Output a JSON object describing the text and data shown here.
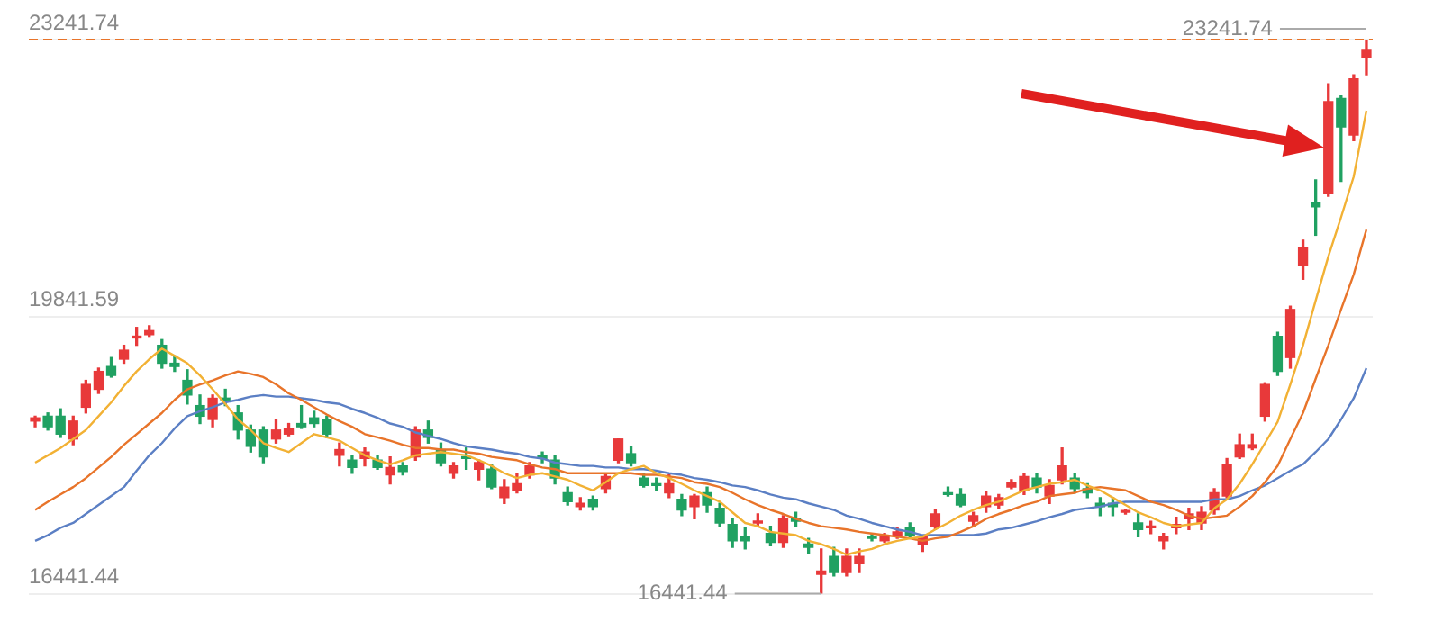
{
  "chart_data": {
    "type": "candlestick",
    "categories": [
      null,
      null,
      null,
      null,
      null,
      null,
      null,
      null,
      null,
      null,
      null,
      null,
      null,
      null,
      null,
      null,
      null,
      null,
      null,
      null,
      null,
      null,
      null,
      null,
      null,
      null,
      null,
      null,
      null,
      null,
      null,
      null,
      null,
      null,
      null,
      null,
      null,
      null,
      null,
      null,
      null,
      null,
      null,
      null,
      null,
      null,
      null,
      null,
      null,
      null,
      null,
      null,
      null,
      null,
      null,
      null,
      null,
      null,
      null,
      null,
      null,
      null,
      null,
      null,
      null,
      null,
      null,
      null,
      null,
      null,
      null,
      null,
      null,
      null,
      null,
      null,
      null,
      null,
      null,
      null,
      null,
      null,
      null,
      null,
      null,
      null,
      null,
      null,
      null,
      null,
      null,
      null,
      null,
      null,
      null,
      null,
      null,
      null,
      null,
      null,
      null,
      null,
      null,
      null,
      null,
      null
    ],
    "ohlc": [
      [
        18560,
        18620,
        18490,
        18600
      ],
      [
        18620,
        18660,
        18450,
        18490
      ],
      [
        18620,
        18710,
        18360,
        18400
      ],
      [
        18340,
        18620,
        18270,
        18560
      ],
      [
        18730,
        19060,
        18660,
        19010
      ],
      [
        18950,
        19210,
        18900,
        19170
      ],
      [
        19230,
        19340,
        19100,
        19120
      ],
      [
        19320,
        19490,
        19270,
        19430
      ],
      [
        19580,
        19710,
        19490,
        19600
      ],
      [
        19620,
        19730,
        19600,
        19670
      ],
      [
        19490,
        19560,
        19210,
        19270
      ],
      [
        19270,
        19360,
        19170,
        19230
      ],
      [
        19060,
        19190,
        18770,
        18880
      ],
      [
        18750,
        18880,
        18530,
        18620
      ],
      [
        18580,
        18880,
        18490,
        18840
      ],
      [
        18840,
        18950,
        18750,
        18820
      ],
      [
        18660,
        18750,
        18340,
        18450
      ],
      [
        18450,
        18510,
        18180,
        18250
      ],
      [
        18450,
        18490,
        18050,
        18120
      ],
      [
        18340,
        18580,
        18290,
        18450
      ],
      [
        18400,
        18530,
        18380,
        18470
      ],
      [
        18530,
        18750,
        18470,
        18490
      ],
      [
        18600,
        18680,
        18490,
        18530
      ],
      [
        18580,
        18620,
        18360,
        18400
      ],
      [
        18140,
        18290,
        18010,
        18210
      ],
      [
        18080,
        18140,
        17920,
        17990
      ],
      [
        18100,
        18230,
        18010,
        18180
      ],
      [
        18080,
        18140,
        17970,
        17990
      ],
      [
        17900,
        18120,
        17790,
        17990
      ],
      [
        18010,
        18050,
        17900,
        17940
      ],
      [
        18120,
        18490,
        18080,
        18450
      ],
      [
        18450,
        18560,
        18290,
        18360
      ],
      [
        18210,
        18290,
        18010,
        18050
      ],
      [
        17920,
        18050,
        17860,
        18010
      ],
      [
        18120,
        18230,
        17970,
        18100
      ],
      [
        17970,
        18080,
        17840,
        18050
      ],
      [
        17970,
        18030,
        17730,
        17750
      ],
      [
        17620,
        17840,
        17550,
        17750
      ],
      [
        17710,
        17920,
        17680,
        17790
      ],
      [
        17900,
        18050,
        17860,
        18010
      ],
      [
        18140,
        18180,
        18050,
        18100
      ],
      [
        18080,
        18140,
        17790,
        17860
      ],
      [
        17680,
        17750,
        17530,
        17570
      ],
      [
        17510,
        17620,
        17470,
        17550
      ],
      [
        17600,
        17640,
        17470,
        17510
      ],
      [
        17730,
        17920,
        17680,
        17880
      ],
      [
        18080,
        18340,
        18050,
        18340
      ],
      [
        18160,
        18250,
        18010,
        18050
      ],
      [
        17860,
        17920,
        17750,
        17770
      ],
      [
        17790,
        17860,
        17710,
        17770
      ],
      [
        17680,
        17900,
        17620,
        17790
      ],
      [
        17600,
        17660,
        17400,
        17470
      ],
      [
        17510,
        17660,
        17360,
        17640
      ],
      [
        17680,
        17750,
        17440,
        17530
      ],
      [
        17490,
        17550,
        17270,
        17310
      ],
      [
        17290,
        17360,
        17010,
        17090
      ],
      [
        17140,
        17250,
        16990,
        17090
      ],
      [
        17310,
        17420,
        17270,
        17330
      ],
      [
        17180,
        17270,
        17030,
        17070
      ],
      [
        17070,
        17400,
        17010,
        17360
      ],
      [
        17360,
        17440,
        17270,
        17330
      ],
      [
        17050,
        17120,
        16940,
        17010
      ],
      [
        16680,
        16990,
        16441.44,
        16720
      ],
      [
        16900,
        17010,
        16660,
        16700
      ],
      [
        16700,
        16990,
        16660,
        16900
      ],
      [
        16810,
        16990,
        16700,
        16900
      ],
      [
        17140,
        17180,
        17090,
        17120
      ],
      [
        17090,
        17180,
        17070,
        17140
      ],
      [
        17160,
        17250,
        17120,
        17200
      ],
      [
        17250,
        17310,
        17120,
        17160
      ],
      [
        17050,
        17160,
        16960,
        17140
      ],
      [
        17270,
        17470,
        17230,
        17420
      ],
      [
        17680,
        17750,
        17640,
        17660
      ],
      [
        17660,
        17730,
        17510,
        17530
      ],
      [
        17330,
        17440,
        17270,
        17400
      ],
      [
        17510,
        17700,
        17440,
        17640
      ],
      [
        17530,
        17660,
        17490,
        17620
      ],
      [
        17750,
        17840,
        17730,
        17810
      ],
      [
        17710,
        17920,
        17660,
        17880
      ],
      [
        17860,
        17920,
        17680,
        17750
      ],
      [
        17640,
        17840,
        17550,
        17770
      ],
      [
        17840,
        18230,
        17790,
        18010
      ],
      [
        17860,
        17920,
        17680,
        17730
      ],
      [
        17730,
        17790,
        17620,
        17680
      ],
      [
        17550,
        17620,
        17400,
        17510
      ],
      [
        17550,
        17620,
        17400,
        17510
      ],
      [
        17440,
        17470,
        17420,
        17460
      ],
      [
        17310,
        17420,
        17140,
        17230
      ],
      [
        17250,
        17330,
        17180,
        17270
      ],
      [
        17090,
        17180,
        16990,
        17140
      ],
      [
        17250,
        17380,
        17180,
        17290
      ],
      [
        17360,
        17490,
        17230,
        17420
      ],
      [
        17310,
        17510,
        17230,
        17440
      ],
      [
        17470,
        17730,
        17420,
        17680
      ],
      [
        17640,
        18100,
        17620,
        18030
      ],
      [
        18120,
        18400,
        18100,
        18270
      ],
      [
        18230,
        18400,
        18210,
        18270
      ],
      [
        18620,
        19030,
        18560,
        19010
      ],
      [
        19600,
        19650,
        19120,
        19170
      ],
      [
        19340,
        19970,
        19210,
        19930
      ],
      [
        20470,
        20780,
        20300,
        20690
      ],
      [
        21240,
        21520,
        20840,
        21190
      ],
      [
        21350,
        22700,
        21320,
        22480
      ],
      [
        22520,
        22550,
        21500,
        22170
      ],
      [
        22070,
        22810,
        22000,
        22760
      ],
      [
        23020,
        23241.74,
        22810,
        23110
      ]
    ],
    "colors": [
      "#e8393a",
      "#20a162",
      "#20a162",
      "#e8393a",
      "#e8393a",
      "#e8393a",
      "#20a162",
      "#e8393a",
      "#e8393a",
      "#e8393a",
      "#20a162",
      "#20a162",
      "#20a162",
      "#20a162",
      "#e8393a",
      "#20a162",
      "#20a162",
      "#20a162",
      "#20a162",
      "#e8393a",
      "#e8393a",
      "#20a162",
      "#20a162",
      "#20a162",
      "#e8393a",
      "#20a162",
      "#e8393a",
      "#20a162",
      "#e8393a",
      "#20a162",
      "#e8393a",
      "#20a162",
      "#20a162",
      "#e8393a",
      "#20a162",
      "#e8393a",
      "#20a162",
      "#e8393a",
      "#e8393a",
      "#e8393a",
      "#20a162",
      "#20a162",
      "#20a162",
      "#e8393a",
      "#20a162",
      "#e8393a",
      "#e8393a",
      "#20a162",
      "#20a162",
      "#20a162",
      "#e8393a",
      "#20a162",
      "#e8393a",
      "#20a162",
      "#20a162",
      "#20a162",
      "#20a162",
      "#e8393a",
      "#20a162",
      "#e8393a",
      "#20a162",
      "#20a162",
      "#e8393a",
      "#20a162",
      "#e8393a",
      "#e8393a",
      "#20a162",
      "#e8393a",
      "#e8393a",
      "#20a162",
      "#e8393a",
      "#e8393a",
      "#20a162",
      "#20a162",
      "#e8393a",
      "#e8393a",
      "#e8393a",
      "#e8393a",
      "#e8393a",
      "#20a162",
      "#e8393a",
      "#e8393a",
      "#20a162",
      "#20a162",
      "#20a162",
      "#20a162",
      "#e8393a",
      "#20a162",
      "#e8393a",
      "#e8393a",
      "#e8393a",
      "#e8393a",
      "#e8393a",
      "#e8393a",
      "#e8393a",
      "#e8393a",
      "#e8393a",
      "#e8393a",
      "#20a162",
      "#e8393a",
      "#e8393a",
      "#20a162",
      "#e8393a",
      "#20a162",
      "#e8393a",
      "#e8393a"
    ],
    "series": [
      {
        "type": "line",
        "color": "#f2b134",
        "values": [
          18050,
          18140,
          18230,
          18340,
          18450,
          18620,
          18790,
          18990,
          19170,
          19320,
          19450,
          19360,
          19270,
          19120,
          18950,
          18770,
          18580,
          18450,
          18290,
          18230,
          18180,
          18290,
          18400,
          18360,
          18320,
          18230,
          18140,
          18080,
          18030,
          18080,
          18140,
          18160,
          18180,
          18160,
          18140,
          18080,
          18010,
          17920,
          17860,
          17900,
          17920,
          17880,
          17840,
          17770,
          17710,
          17810,
          17920,
          17970,
          18010,
          17920,
          17860,
          17790,
          17710,
          17640,
          17570,
          17440,
          17310,
          17270,
          17200,
          17180,
          17160,
          17090,
          17050,
          16990,
          16920,
          16960,
          16990,
          17050,
          17090,
          17120,
          17140,
          17230,
          17310,
          17400,
          17470,
          17530,
          17570,
          17640,
          17710,
          17750,
          17790,
          17810,
          17840,
          17770,
          17710,
          17620,
          17530,
          17440,
          17380,
          17310,
          17270,
          17290,
          17310,
          17490,
          17600,
          17790,
          18030,
          18290,
          18550,
          19010,
          19490,
          20040,
          20580,
          21060,
          21560,
          22370
        ]
      },
      {
        "type": "line",
        "color": "#e8742a",
        "values": [
          17470,
          17570,
          17660,
          17750,
          17860,
          17990,
          18120,
          18270,
          18400,
          18530,
          18660,
          18820,
          18950,
          19010,
          19060,
          19120,
          19170,
          19140,
          19100,
          19010,
          18900,
          18820,
          18730,
          18640,
          18560,
          18490,
          18400,
          18360,
          18320,
          18270,
          18230,
          18230,
          18210,
          18210,
          18180,
          18160,
          18120,
          18100,
          18080,
          18030,
          17990,
          17970,
          17920,
          17920,
          17920,
          17920,
          17920,
          17920,
          17900,
          17900,
          17880,
          17860,
          17810,
          17790,
          17750,
          17680,
          17600,
          17530,
          17470,
          17420,
          17360,
          17310,
          17270,
          17250,
          17230,
          17200,
          17180,
          17160,
          17140,
          17120,
          17090,
          17120,
          17140,
          17200,
          17270,
          17360,
          17420,
          17470,
          17530,
          17570,
          17640,
          17660,
          17680,
          17730,
          17750,
          17730,
          17710,
          17640,
          17570,
          17530,
          17470,
          17400,
          17360,
          17380,
          17400,
          17510,
          17640,
          17810,
          18010,
          18340,
          18660,
          19080,
          19490,
          19930,
          20360,
          20910
        ]
      },
      {
        "type": "line",
        "color": "#5b7fc4",
        "values": [
          17090,
          17160,
          17250,
          17310,
          17420,
          17530,
          17640,
          17750,
          17950,
          18140,
          18290,
          18470,
          18620,
          18680,
          18730,
          18790,
          18820,
          18860,
          18880,
          18860,
          18860,
          18840,
          18820,
          18790,
          18770,
          18710,
          18660,
          18600,
          18530,
          18490,
          18420,
          18380,
          18340,
          18290,
          18250,
          18230,
          18210,
          18180,
          18160,
          18120,
          18100,
          18050,
          18030,
          18010,
          18010,
          17990,
          17990,
          17970,
          17970,
          17950,
          17920,
          17900,
          17860,
          17840,
          17810,
          17770,
          17750,
          17710,
          17660,
          17620,
          17600,
          17550,
          17510,
          17470,
          17400,
          17360,
          17310,
          17270,
          17230,
          17200,
          17160,
          17160,
          17160,
          17160,
          17160,
          17180,
          17230,
          17250,
          17290,
          17330,
          17380,
          17420,
          17470,
          17490,
          17510,
          17550,
          17570,
          17570,
          17570,
          17570,
          17570,
          17570,
          17570,
          17600,
          17600,
          17640,
          17710,
          17770,
          17860,
          17950,
          18030,
          18180,
          18340,
          18580,
          18840,
          19210
        ]
      }
    ],
    "ylim": [
      16441.44,
      23241.74
    ],
    "yticks": [
      16441.44,
      19841.59,
      23241.74
    ],
    "tick_labels": "y",
    "grid": "y",
    "marker": "none",
    "legend": false,
    "ref_lines": [
      {
        "axis": "y",
        "value": 23241.74,
        "color": "#e8742a",
        "line_style": "dashed"
      }
    ],
    "annotations": [
      "23241.74",
      "16441.44"
    ]
  }
}
